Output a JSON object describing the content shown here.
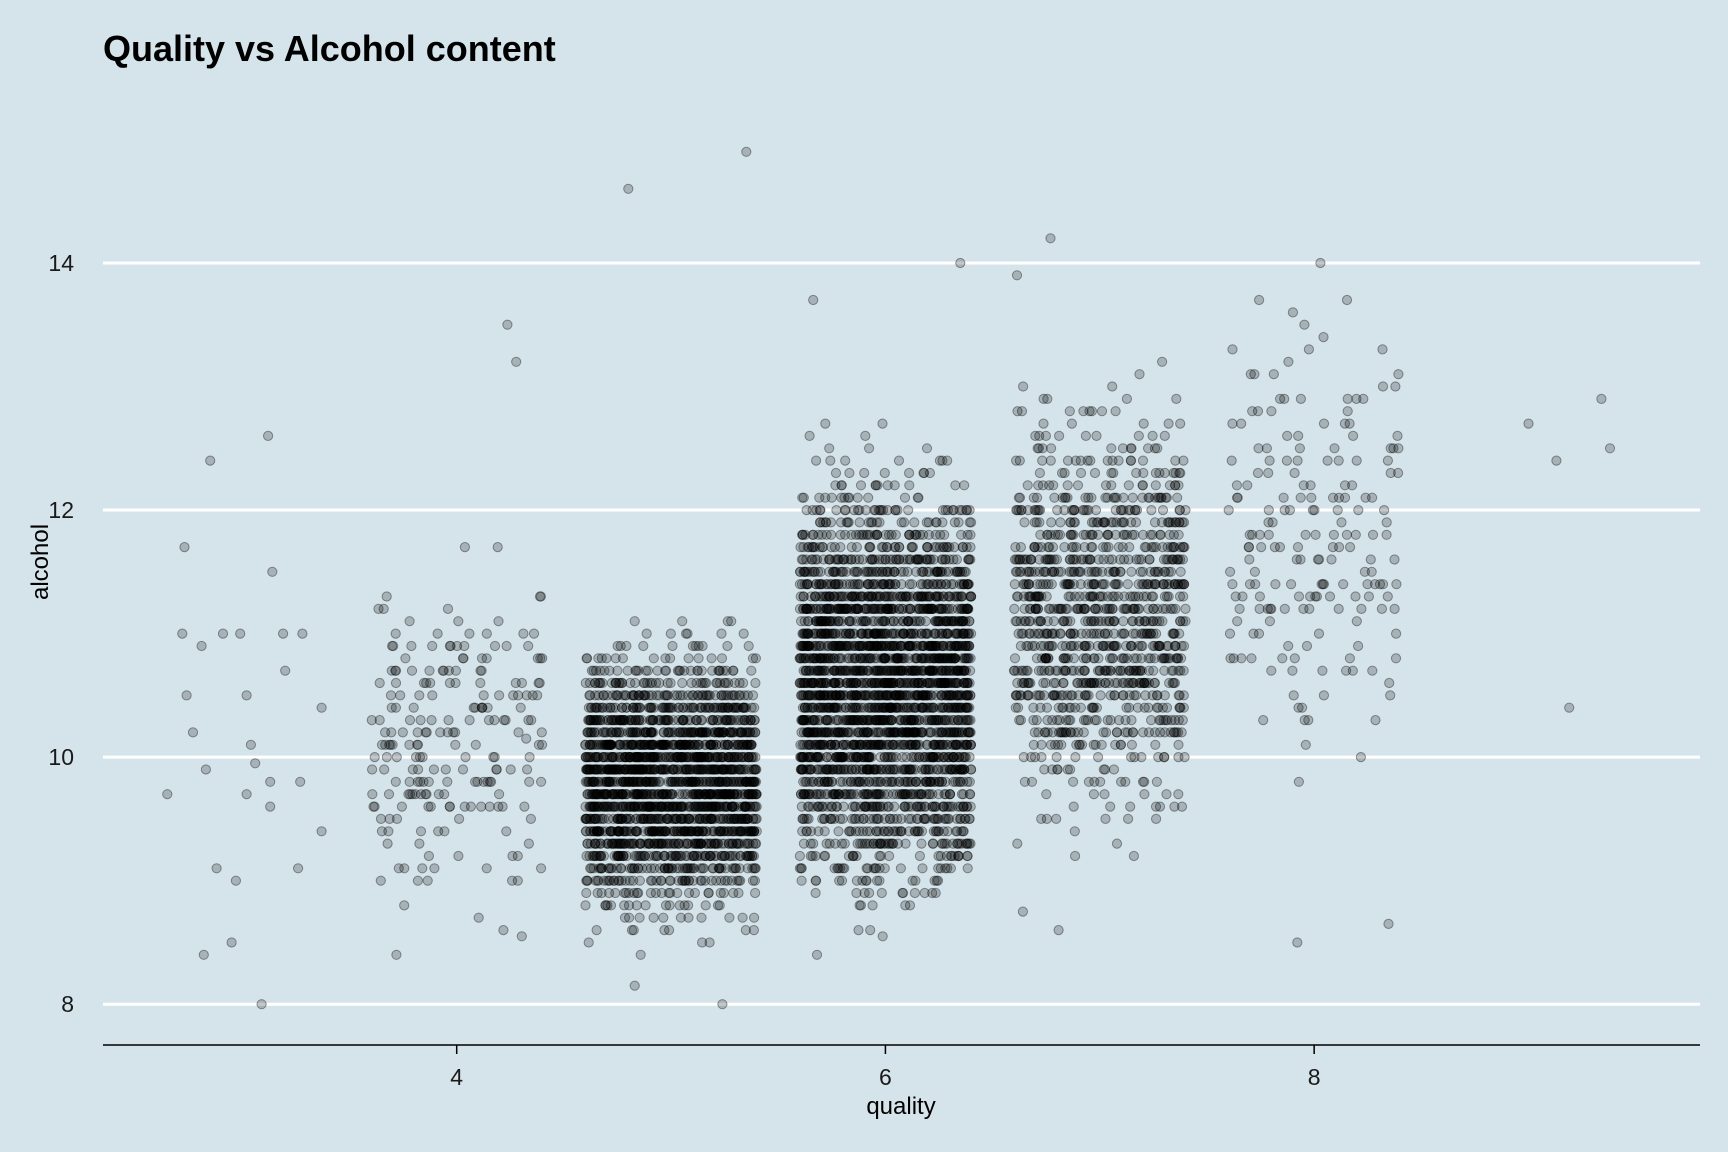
{
  "chart_data": {
    "type": "scatter",
    "title": "Quality vs Alcohol content",
    "xlabel": "quality",
    "ylabel": "alcohol",
    "xlim": [
      2.35,
      9.8
    ],
    "ylim": [
      7.67,
      15.4
    ],
    "x_ticks": [
      4,
      6,
      8
    ],
    "y_ticks": [
      8,
      10,
      12,
      14
    ],
    "grid": "horizontal-major",
    "legend": "none",
    "point_alpha": 0.25,
    "jitter_width": 0.4,
    "point_color": "#000000",
    "background_color": "#d5e4eb",
    "groups": [
      {
        "quality": 3,
        "count": 30,
        "ymin": 8.0,
        "ymax": 12.6,
        "points": [
          [
            2.65,
            9.7
          ],
          [
            2.73,
            11.7
          ],
          [
            2.72,
            11.0
          ],
          [
            2.74,
            10.5
          ],
          [
            2.77,
            10.2
          ],
          [
            2.81,
            10.9
          ],
          [
            2.82,
            8.4
          ],
          [
            2.83,
            9.9
          ],
          [
            2.85,
            12.4
          ],
          [
            2.88,
            9.1
          ],
          [
            2.91,
            11.0
          ],
          [
            2.95,
            8.5
          ],
          [
            2.97,
            9.0
          ],
          [
            2.99,
            11.0
          ],
          [
            3.02,
            9.7
          ],
          [
            3.02,
            10.5
          ],
          [
            3.04,
            10.1
          ],
          [
            3.06,
            9.95
          ],
          [
            3.09,
            8.0
          ],
          [
            3.12,
            12.6
          ],
          [
            3.14,
            11.5
          ],
          [
            3.13,
            9.8
          ],
          [
            3.13,
            9.6
          ],
          [
            3.19,
            11.0
          ],
          [
            3.2,
            10.7
          ],
          [
            3.26,
            9.1
          ],
          [
            3.27,
            9.8
          ],
          [
            3.28,
            11.0
          ],
          [
            3.37,
            9.4
          ],
          [
            3.37,
            10.4
          ]
        ]
      },
      {
        "quality": 4,
        "count": 216,
        "ymin": 8.4,
        "ymax": 13.5
      },
      {
        "quality": 5,
        "count": 2138,
        "ymin": 8.0,
        "ymax": 14.9
      },
      {
        "quality": 6,
        "count": 2836,
        "ymin": 8.4,
        "ymax": 14.0
      },
      {
        "quality": 7,
        "count": 1079,
        "ymin": 8.6,
        "ymax": 14.2
      },
      {
        "quality": 8,
        "count": 193,
        "ymin": 8.5,
        "ymax": 14.0
      },
      {
        "quality": 9,
        "count": 5,
        "ymin": 10.4,
        "ymax": 12.9,
        "points": [
          [
            9.0,
            12.7
          ],
          [
            9.13,
            12.4
          ],
          [
            9.19,
            10.4
          ],
          [
            9.34,
            12.9
          ],
          [
            9.38,
            12.5
          ]
        ]
      }
    ]
  }
}
